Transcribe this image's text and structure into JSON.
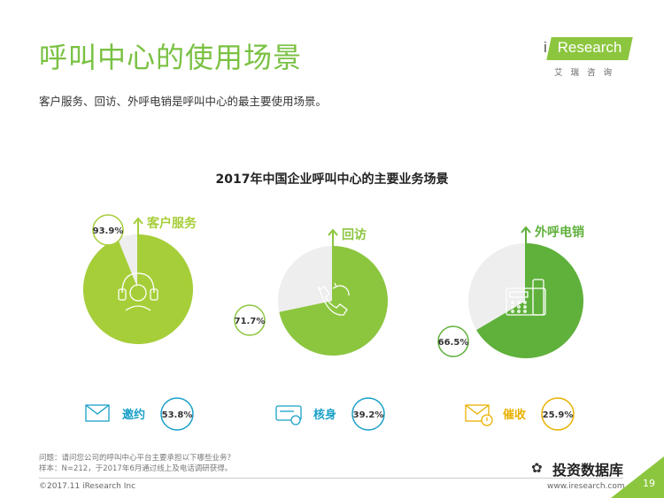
{
  "header": {
    "title": "呼叫中心的使用场景",
    "subtitle": "客户服务、回访、外呼电销是呼叫中心的最主要使用场景。"
  },
  "logo": {
    "i": "i",
    "name": "Research",
    "sub": "艾瑞咨询"
  },
  "footer": {
    "question": "问题：请问您公司的呼叫中心平台主要承担以下哪些业务？",
    "sample": "样本：N=212，于2017年6月通过线上及电话调研获得。",
    "copyright": "©2017.11 iResearch Inc",
    "website": "www.iresearch.com.cn",
    "page": "19",
    "watermark": "投资数据库"
  },
  "chart_data": {
    "type": "pie",
    "title": "2017年中国企业呼叫中心的主要业务场景",
    "pies": [
      {
        "label": "客户服务",
        "value": 93.9,
        "value_label": "93.9%",
        "color": "#a6ce39",
        "icon": "customer-service-icon"
      },
      {
        "label": "回访",
        "value": 71.7,
        "value_label": "71.7%",
        "color": "#8cc63f",
        "icon": "phone-callback-icon"
      },
      {
        "label": "外呼电销",
        "value": 66.5,
        "value_label": "66.5%",
        "color": "#5fb13b",
        "icon": "desk-phone-icon"
      }
    ],
    "small_items": [
      {
        "label": "邀约",
        "value": 53.8,
        "value_label": "53.8%",
        "color": "#1aa0c8",
        "icon": "envelope-icon"
      },
      {
        "label": "核身",
        "value": 39.2,
        "value_label": "39.2%",
        "color": "#1aa0c8",
        "icon": "id-card-icon"
      },
      {
        "label": "催收",
        "value": 25.9,
        "value_label": "25.9%",
        "color": "#e8b100",
        "icon": "warning-envelope-icon"
      }
    ],
    "remainder_color": "#eeeeee"
  }
}
